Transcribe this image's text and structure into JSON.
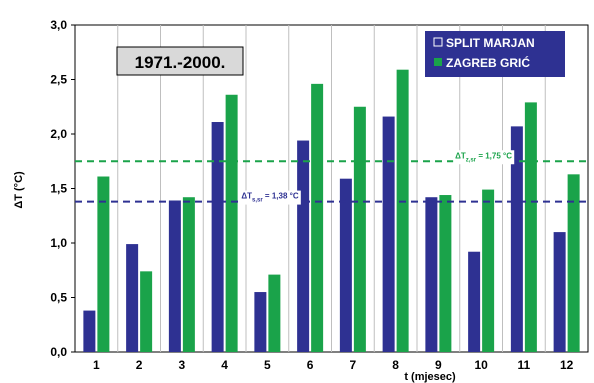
{
  "chart_data": {
    "type": "bar",
    "period_label": "1971.-2000.",
    "xlabel": "t (mjesec)",
    "ylabel": "ΔT (°C)",
    "ylim": [
      0,
      3
    ],
    "yticks": [
      "0,0",
      "0,5",
      "1,0",
      "1,5",
      "2,0",
      "2,5",
      "3,0"
    ],
    "categories": [
      "1",
      "2",
      "3",
      "4",
      "5",
      "6",
      "7",
      "8",
      "9",
      "10",
      "11",
      "12"
    ],
    "grid": "vertical",
    "legend_position": "top-right",
    "series": [
      {
        "name": "SPLIT MARJAN",
        "color": "#2e3192",
        "values": [
          0.38,
          0.99,
          1.39,
          2.11,
          0.55,
          1.94,
          1.59,
          2.16,
          1.42,
          0.92,
          2.07,
          1.1
        ]
      },
      {
        "name": "ZAGREB GRIĆ",
        "color": "#1aa34a",
        "values": [
          1.61,
          0.74,
          1.42,
          2.36,
          0.71,
          2.46,
          2.25,
          2.59,
          1.44,
          1.49,
          2.29,
          1.63
        ]
      }
    ],
    "reference_lines": [
      {
        "label": "ΔT",
        "subscript": "s,sr",
        "value_text": " = 1,38 °C",
        "value": 1.38,
        "color": "#2e3192",
        "label_month": 5
      },
      {
        "label": "ΔT",
        "subscript": "z,sr",
        "value_text": " = 1,75 °C",
        "value": 1.75,
        "color": "#1aa34a",
        "label_month": 10
      }
    ]
  }
}
